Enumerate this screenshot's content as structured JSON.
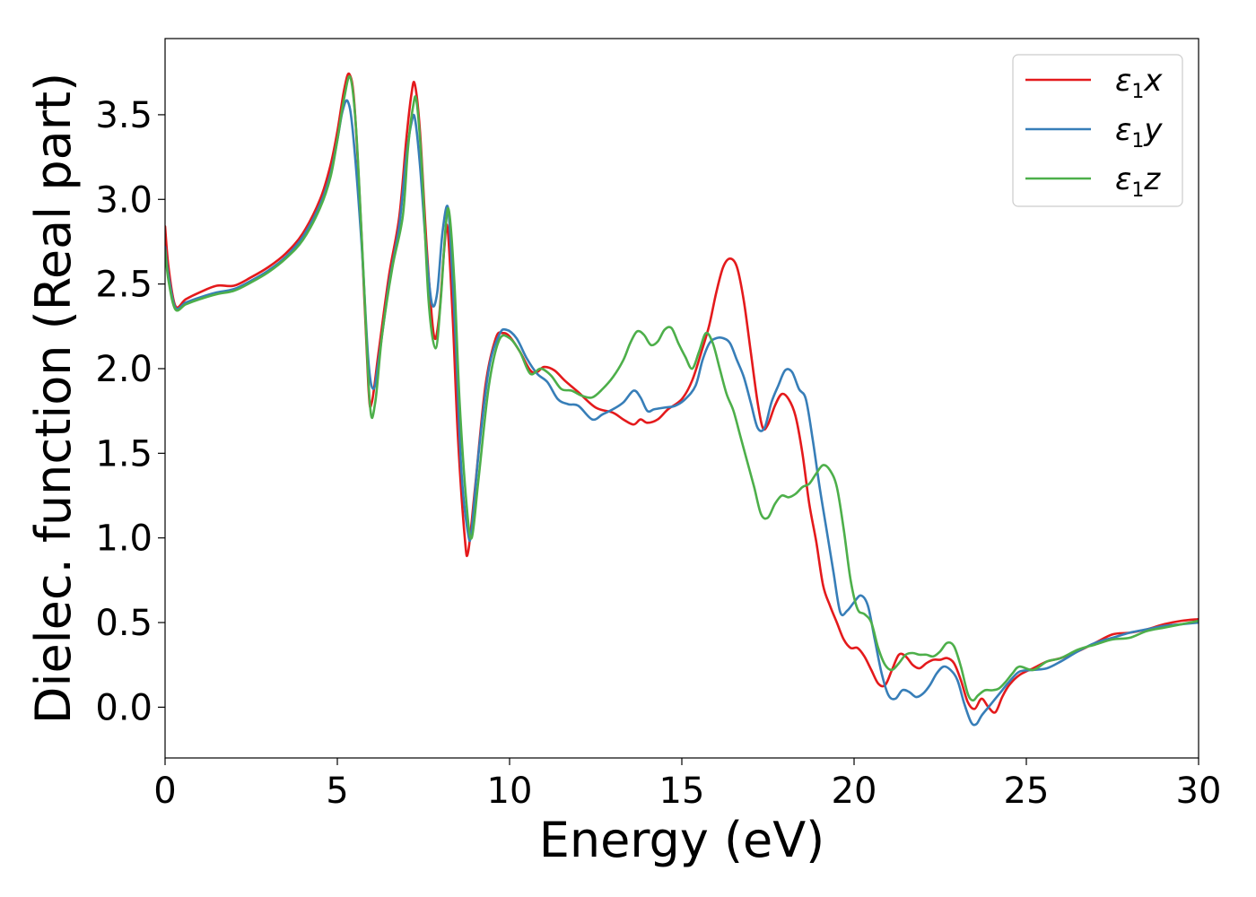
{
  "chart_data": {
    "type": "line",
    "title": "",
    "xlabel": "Energy (eV)",
    "ylabel": "Dielec. function (Real part)",
    "xlim": [
      0,
      30
    ],
    "ylim": [
      -0.3,
      3.95
    ],
    "xticks": [
      0,
      5,
      10,
      15,
      20,
      25,
      30
    ],
    "xtick_labels": [
      "0",
      "5",
      "10",
      "15",
      "20",
      "25",
      "30"
    ],
    "yticks": [
      0.0,
      0.5,
      1.0,
      1.5,
      2.0,
      2.5,
      3.0,
      3.5
    ],
    "ytick_labels": [
      "0.0",
      "0.5",
      "1.0",
      "1.5",
      "2.0",
      "2.5",
      "3.0",
      "3.5"
    ],
    "grid": false,
    "legend_position": "top-right",
    "series": [
      {
        "name": "ε₁x",
        "legend_base": "ε",
        "legend_sub": "1",
        "legend_suffix": "x",
        "color": "#e41a1c",
        "x": [
          0,
          0.1,
          0.3,
          0.6,
          1.0,
          1.5,
          2.0,
          2.5,
          3.0,
          3.5,
          4.0,
          4.5,
          4.8,
          5.0,
          5.2,
          5.35,
          5.5,
          5.7,
          5.9,
          6.0,
          6.2,
          6.5,
          6.8,
          7.0,
          7.15,
          7.25,
          7.4,
          7.6,
          7.8,
          7.95,
          8.1,
          8.2,
          8.35,
          8.5,
          8.7,
          8.8,
          9.0,
          9.3,
          9.6,
          9.8,
          10.0,
          10.3,
          10.6,
          10.8,
          11.0,
          11.3,
          11.6,
          12.0,
          12.5,
          13.0,
          13.3,
          13.6,
          13.8,
          14.0,
          14.3,
          14.6,
          15.0,
          15.3,
          15.6,
          15.8,
          16.0,
          16.2,
          16.4,
          16.6,
          16.8,
          17.0,
          17.2,
          17.35,
          17.5,
          17.7,
          17.9,
          18.1,
          18.3,
          18.5,
          18.7,
          18.9,
          19.1,
          19.3,
          19.5,
          19.7,
          19.9,
          20.1,
          20.3,
          20.5,
          20.7,
          20.9,
          21.1,
          21.3,
          21.5,
          21.7,
          21.9,
          22.1,
          22.3,
          22.5,
          22.7,
          22.9,
          23.1,
          23.3,
          23.5,
          23.7,
          23.9,
          24.1,
          24.3,
          24.5,
          24.8,
          25.2,
          25.6,
          26.0,
          26.5,
          27.0,
          27.5,
          28.0,
          28.5,
          29.0,
          29.5,
          30.0
        ],
        "y": [
          2.84,
          2.6,
          2.37,
          2.41,
          2.45,
          2.49,
          2.49,
          2.54,
          2.6,
          2.68,
          2.8,
          3.0,
          3.2,
          3.4,
          3.65,
          3.74,
          3.55,
          2.8,
          1.9,
          1.8,
          2.1,
          2.55,
          2.9,
          3.35,
          3.62,
          3.68,
          3.4,
          2.7,
          2.2,
          2.3,
          2.7,
          2.83,
          2.3,
          1.6,
          1.0,
          0.92,
          1.3,
          1.9,
          2.18,
          2.21,
          2.19,
          2.1,
          1.99,
          1.98,
          2.01,
          1.99,
          1.93,
          1.86,
          1.77,
          1.74,
          1.7,
          1.67,
          1.7,
          1.68,
          1.7,
          1.76,
          1.82,
          1.93,
          2.12,
          2.26,
          2.45,
          2.6,
          2.65,
          2.6,
          2.4,
          2.1,
          1.8,
          1.65,
          1.67,
          1.78,
          1.85,
          1.82,
          1.72,
          1.5,
          1.2,
          0.98,
          0.72,
          0.6,
          0.5,
          0.4,
          0.35,
          0.35,
          0.3,
          0.22,
          0.14,
          0.13,
          0.22,
          0.31,
          0.3,
          0.25,
          0.23,
          0.26,
          0.28,
          0.28,
          0.29,
          0.26,
          0.16,
          0.03,
          -0.01,
          0.05,
          0.0,
          -0.03,
          0.06,
          0.13,
          0.19,
          0.23,
          0.27,
          0.29,
          0.33,
          0.38,
          0.43,
          0.44,
          0.46,
          0.49,
          0.51,
          0.52
        ]
      },
      {
        "name": "ε₁y",
        "legend_base": "ε",
        "legend_sub": "1",
        "legend_suffix": "y",
        "color": "#377eb8",
        "x": [
          0,
          0.1,
          0.3,
          0.6,
          1.0,
          1.5,
          2.0,
          2.5,
          3.0,
          3.5,
          4.0,
          4.5,
          4.8,
          5.0,
          5.15,
          5.3,
          5.45,
          5.7,
          5.9,
          6.05,
          6.2,
          6.5,
          6.8,
          7.0,
          7.15,
          7.25,
          7.4,
          7.6,
          7.75,
          7.9,
          8.05,
          8.2,
          8.3,
          8.45,
          8.6,
          8.8,
          8.9,
          9.1,
          9.4,
          9.7,
          9.9,
          10.2,
          10.5,
          10.8,
          11.1,
          11.4,
          11.7,
          12.0,
          12.4,
          12.7,
          13.0,
          13.3,
          13.6,
          13.8,
          14.0,
          14.2,
          14.5,
          14.8,
          15.1,
          15.4,
          15.6,
          15.8,
          16.0,
          16.2,
          16.4,
          16.6,
          16.8,
          17.0,
          17.2,
          17.4,
          17.6,
          17.8,
          18.0,
          18.2,
          18.4,
          18.6,
          18.8,
          19.0,
          19.2,
          19.4,
          19.6,
          19.8,
          20.0,
          20.2,
          20.4,
          20.6,
          20.8,
          21.0,
          21.2,
          21.4,
          21.6,
          21.8,
          22.0,
          22.2,
          22.4,
          22.6,
          22.8,
          23.0,
          23.2,
          23.4,
          23.55,
          23.7,
          23.9,
          24.1,
          24.3,
          24.5,
          24.8,
          25.2,
          25.6,
          26.0,
          26.5,
          27.0,
          27.5,
          28.0,
          28.5,
          29.0,
          29.5,
          30.0
        ],
        "y": [
          2.72,
          2.55,
          2.36,
          2.39,
          2.42,
          2.45,
          2.47,
          2.52,
          2.58,
          2.66,
          2.78,
          2.97,
          3.15,
          3.35,
          3.52,
          3.58,
          3.4,
          2.75,
          2.05,
          1.88,
          2.05,
          2.5,
          2.85,
          3.25,
          3.45,
          3.48,
          3.2,
          2.65,
          2.38,
          2.45,
          2.8,
          2.96,
          2.7,
          2.1,
          1.4,
          1.02,
          1.05,
          1.5,
          2.0,
          2.2,
          2.23,
          2.18,
          2.06,
          1.97,
          1.92,
          1.82,
          1.79,
          1.78,
          1.7,
          1.73,
          1.76,
          1.8,
          1.87,
          1.83,
          1.75,
          1.76,
          1.77,
          1.78,
          1.82,
          1.9,
          2.05,
          2.15,
          2.18,
          2.18,
          2.15,
          2.05,
          1.95,
          1.8,
          1.65,
          1.65,
          1.8,
          1.9,
          1.99,
          1.98,
          1.88,
          1.82,
          1.58,
          1.3,
          1.05,
          0.8,
          0.56,
          0.57,
          0.62,
          0.66,
          0.6,
          0.4,
          0.2,
          0.07,
          0.05,
          0.1,
          0.09,
          0.06,
          0.08,
          0.13,
          0.2,
          0.24,
          0.22,
          0.16,
          0.02,
          -0.09,
          -0.1,
          -0.05,
          0.0,
          0.05,
          0.1,
          0.15,
          0.21,
          0.22,
          0.23,
          0.27,
          0.33,
          0.38,
          0.41,
          0.44,
          0.46,
          0.48,
          0.49,
          0.5
        ]
      },
      {
        "name": "ε₁z",
        "legend_base": "ε",
        "legend_sub": "1",
        "legend_suffix": "z",
        "color": "#4daf4a",
        "x": [
          0,
          0.1,
          0.3,
          0.6,
          1.0,
          1.5,
          2.0,
          2.5,
          3.0,
          3.5,
          4.0,
          4.5,
          4.8,
          5.0,
          5.2,
          5.38,
          5.55,
          5.75,
          5.95,
          6.1,
          6.3,
          6.6,
          6.9,
          7.05,
          7.2,
          7.3,
          7.45,
          7.65,
          7.85,
          8.0,
          8.15,
          8.25,
          8.4,
          8.55,
          8.75,
          8.9,
          9.1,
          9.4,
          9.7,
          10.0,
          10.3,
          10.6,
          10.9,
          11.2,
          11.5,
          11.8,
          12.1,
          12.4,
          12.7,
          13.0,
          13.3,
          13.5,
          13.7,
          13.9,
          14.1,
          14.3,
          14.5,
          14.7,
          14.9,
          15.1,
          15.3,
          15.5,
          15.7,
          15.9,
          16.1,
          16.3,
          16.5,
          16.7,
          16.9,
          17.1,
          17.3,
          17.5,
          17.7,
          17.9,
          18.1,
          18.3,
          18.5,
          18.7,
          18.9,
          19.1,
          19.3,
          19.5,
          19.7,
          19.9,
          20.1,
          20.3,
          20.5,
          20.7,
          20.9,
          21.1,
          21.3,
          21.5,
          21.7,
          21.9,
          22.1,
          22.3,
          22.5,
          22.7,
          22.9,
          23.1,
          23.3,
          23.45,
          23.6,
          23.8,
          24.0,
          24.2,
          24.4,
          24.6,
          24.8,
          25.2,
          25.6,
          26.0,
          26.5,
          27.0,
          27.5,
          28.0,
          28.5,
          29.0,
          29.5,
          30.0
        ],
        "y": [
          2.7,
          2.52,
          2.35,
          2.38,
          2.41,
          2.44,
          2.46,
          2.51,
          2.57,
          2.65,
          2.76,
          2.95,
          3.13,
          3.35,
          3.6,
          3.72,
          3.4,
          2.6,
          1.78,
          1.8,
          2.2,
          2.6,
          2.9,
          3.3,
          3.55,
          3.58,
          3.2,
          2.4,
          2.12,
          2.4,
          2.85,
          2.92,
          2.5,
          1.8,
          1.2,
          1.0,
          1.35,
          1.9,
          2.17,
          2.18,
          2.1,
          1.97,
          2.0,
          1.96,
          1.88,
          1.87,
          1.84,
          1.83,
          1.88,
          1.95,
          2.05,
          2.15,
          2.22,
          2.2,
          2.14,
          2.16,
          2.23,
          2.24,
          2.15,
          2.07,
          2.0,
          2.1,
          2.21,
          2.15,
          2.0,
          1.85,
          1.75,
          1.6,
          1.45,
          1.3,
          1.14,
          1.12,
          1.2,
          1.25,
          1.24,
          1.26,
          1.3,
          1.32,
          1.38,
          1.43,
          1.4,
          1.3,
          1.05,
          0.75,
          0.58,
          0.55,
          0.5,
          0.35,
          0.25,
          0.22,
          0.26,
          0.31,
          0.32,
          0.31,
          0.31,
          0.3,
          0.33,
          0.38,
          0.36,
          0.24,
          0.08,
          0.04,
          0.07,
          0.1,
          0.1,
          0.11,
          0.15,
          0.2,
          0.24,
          0.22,
          0.27,
          0.29,
          0.34,
          0.37,
          0.4,
          0.41,
          0.45,
          0.47,
          0.49,
          0.51
        ]
      }
    ]
  }
}
